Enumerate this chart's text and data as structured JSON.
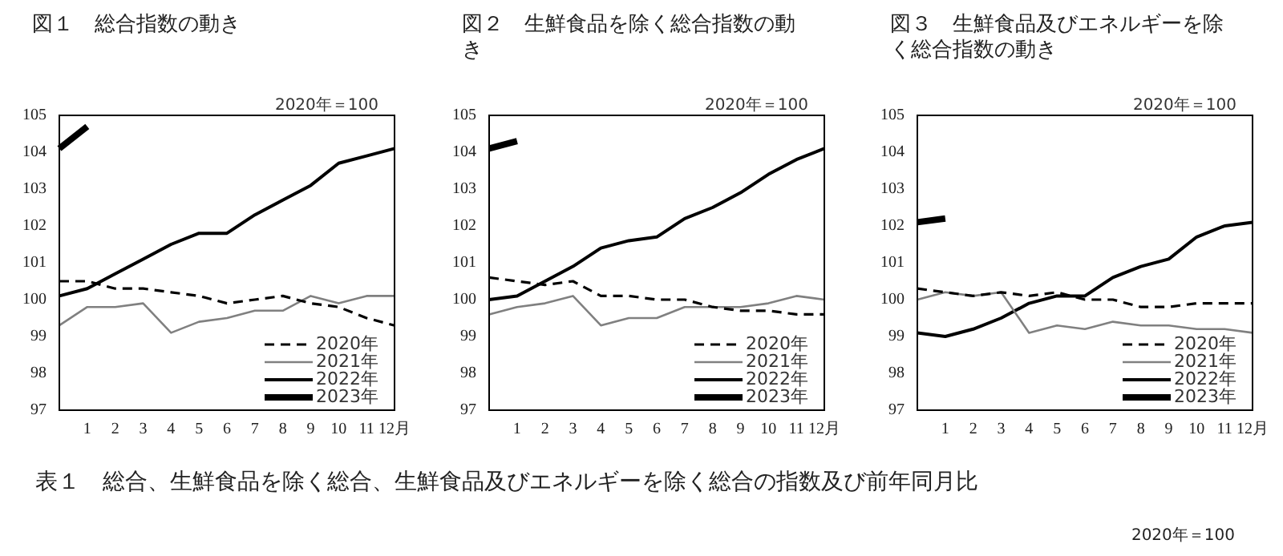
{
  "chart_data": [
    {
      "type": "line",
      "title": "図１　総合指数の動き",
      "categories": [
        null,
        "1",
        "2",
        "3",
        "4",
        "5",
        "6",
        "7",
        "8",
        "9",
        "10",
        "11",
        "12月"
      ],
      "ylim": [
        97,
        105
      ],
      "yticks": [
        97,
        98,
        99,
        100,
        101,
        102,
        103,
        104,
        105
      ],
      "grid": false,
      "legend": "bottom right",
      "marker": "none",
      "annotations": [
        "2020年＝100",
        "表１　総合、生鮮食品を除く総合、生鮮食品及びエネルギーを除く総合の指数及び前年同月比",
        "2020年＝100"
      ],
      "series": [
        {
          "name": "2020年",
          "color": "#000000",
          "line_style": "dashed",
          "values": [
            100.5,
            100.5,
            100.3,
            100.3,
            100.2,
            100.1,
            99.9,
            100.0,
            100.1,
            99.9,
            99.8,
            99.5,
            99.3
          ]
        },
        {
          "name": "2021年",
          "color": "#808080",
          "values": [
            99.3,
            99.8,
            99.8,
            99.9,
            99.1,
            99.4,
            99.5,
            99.7,
            99.7,
            100.1,
            99.9,
            100.1,
            100.1
          ]
        },
        {
          "name": "2022年",
          "color": "#000000",
          "values": [
            100.1,
            100.3,
            100.7,
            101.1,
            101.5,
            101.8,
            101.8,
            102.3,
            102.7,
            103.1,
            103.7,
            103.9,
            104.1
          ]
        },
        {
          "name": "2023年",
          "color": "#000000",
          "values": [
            104.1,
            104.7,
            null,
            null,
            null,
            null,
            null,
            null,
            null,
            null,
            null,
            null,
            null
          ]
        }
      ]
    },
    {
      "type": "line",
      "title": "図２　生鮮食品を除く総合指数の動き",
      "categories": [
        null,
        "1",
        "2",
        "3",
        "4",
        "5",
        "6",
        "7",
        "8",
        "9",
        "10",
        "11",
        "12月"
      ],
      "ylim": [
        97,
        105
      ],
      "yticks": [
        97,
        98,
        99,
        100,
        101,
        102,
        103,
        104,
        105
      ],
      "grid": false,
      "legend": "bottom right",
      "marker": "none",
      "annotations": [
        "2020年＝100"
      ],
      "series": [
        {
          "name": "2020年",
          "color": "#000000",
          "line_style": "dashed",
          "values": [
            100.6,
            100.5,
            100.4,
            100.5,
            100.1,
            100.1,
            100.0,
            100.0,
            99.8,
            99.7,
            99.7,
            99.6,
            99.6
          ]
        },
        {
          "name": "2021年",
          "color": "#808080",
          "values": [
            99.6,
            99.8,
            99.9,
            100.1,
            99.3,
            99.5,
            99.5,
            99.8,
            99.8,
            99.8,
            99.9,
            100.1,
            100.0
          ]
        },
        {
          "name": "2022年",
          "color": "#000000",
          "values": [
            100.0,
            100.1,
            100.5,
            100.9,
            101.4,
            101.6,
            101.7,
            102.2,
            102.5,
            102.9,
            103.4,
            103.8,
            104.1
          ]
        },
        {
          "name": "2023年",
          "color": "#000000",
          "values": [
            104.1,
            104.3,
            null,
            null,
            null,
            null,
            null,
            null,
            null,
            null,
            null,
            null,
            null
          ]
        }
      ]
    },
    {
      "type": "line",
      "title": "図３　生鮮食品及びエネルギーを除く総合指数の動き",
      "categories": [
        null,
        "1",
        "2",
        "3",
        "4",
        "5",
        "6",
        "7",
        "8",
        "9",
        "10",
        "11",
        "12月"
      ],
      "ylim": [
        97,
        105
      ],
      "yticks": [
        97,
        98,
        99,
        100,
        101,
        102,
        103,
        104,
        105
      ],
      "grid": false,
      "legend": "bottom right",
      "marker": "none",
      "annotations": [
        "2020年＝100"
      ],
      "series": [
        {
          "name": "2020年",
          "color": "#000000",
          "line_style": "dashed",
          "values": [
            100.3,
            100.2,
            100.1,
            100.2,
            100.1,
            100.2,
            100.0,
            100.0,
            99.8,
            99.8,
            99.9,
            99.9,
            99.9
          ]
        },
        {
          "name": "2021年",
          "color": "#808080",
          "values": [
            100.0,
            100.2,
            100.1,
            100.2,
            99.1,
            99.3,
            99.2,
            99.4,
            99.3,
            99.3,
            99.2,
            99.2,
            99.1
          ]
        },
        {
          "name": "2022年",
          "color": "#000000",
          "values": [
            99.1,
            99.0,
            99.2,
            99.5,
            99.9,
            100.1,
            100.1,
            100.6,
            100.9,
            101.1,
            101.7,
            102.0,
            102.1
          ]
        },
        {
          "name": "2023年",
          "color": "#000000",
          "values": [
            102.1,
            102.2,
            null,
            null,
            null,
            null,
            null,
            null,
            null,
            null,
            null,
            null,
            null
          ]
        }
      ]
    }
  ]
}
